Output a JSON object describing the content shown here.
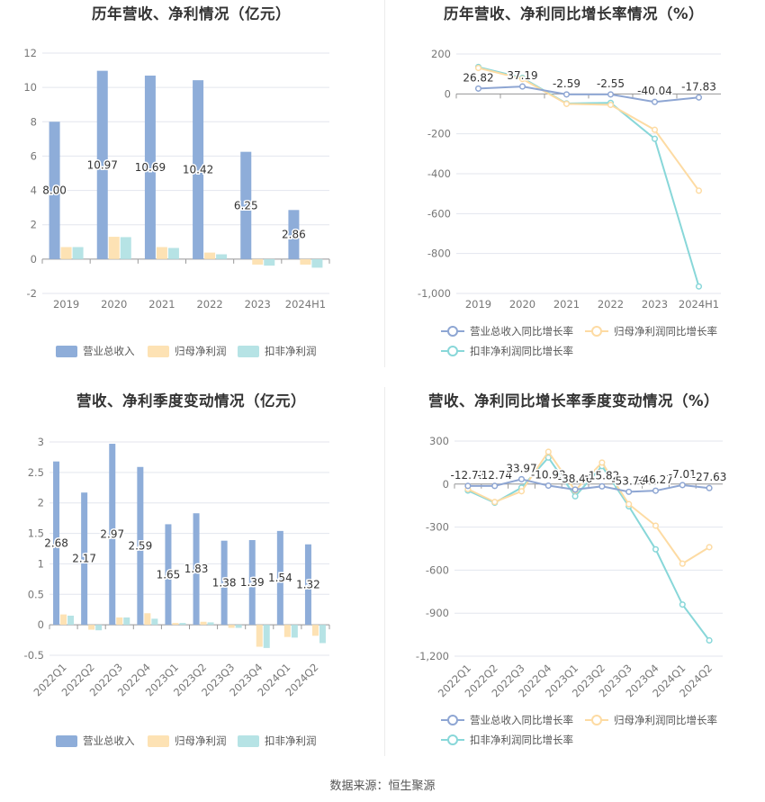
{
  "colors": {
    "revenue": "#8eadd9",
    "net_profit": "#fde2b4",
    "deducted_profit": "#b6e3e5",
    "revenue_line": "#8ea6d3",
    "net_line": "#fddba3",
    "deducted_line": "#88d7d9",
    "grid": "#e3e6ee",
    "axis": "#999999"
  },
  "source_text": "数据来源：恒生聚源",
  "chart_data": [
    {
      "type": "bar",
      "title": "历年营收、净利情况（亿元）",
      "categories": [
        "2019",
        "2020",
        "2021",
        "2022",
        "2023",
        "2024H1"
      ],
      "series": [
        {
          "name": "营业总收入",
          "values": [
            8.0,
            10.97,
            10.69,
            10.42,
            6.25,
            2.86
          ]
        },
        {
          "name": "归母净利润",
          "values": [
            0.7,
            1.3,
            0.7,
            0.38,
            -0.32,
            -0.32
          ]
        },
        {
          "name": "扣非净利润",
          "values": [
            0.7,
            1.28,
            0.65,
            0.28,
            -0.38,
            -0.5
          ]
        }
      ],
      "data_labels": [
        "8.00",
        "10.97",
        "10.69",
        "10.42",
        "6.25",
        "2.86"
      ],
      "yticks": [
        "-2",
        "0",
        "2",
        "4",
        "6",
        "8",
        "10",
        "12"
      ],
      "ylim": [
        -2,
        12
      ],
      "grid": true,
      "legend": "bottom"
    },
    {
      "type": "line",
      "title": "历年营收、净利同比增长率情况（%）",
      "categories": [
        "2019",
        "2020",
        "2021",
        "2022",
        "2023",
        "2024H1"
      ],
      "series": [
        {
          "name": "营业总收入同比增长率",
          "values": [
            26.82,
            37.19,
            -2.59,
            -2.55,
            -40.04,
            -17.83
          ]
        },
        {
          "name": "归母净利润同比增长率",
          "values": [
            130,
            75,
            -50,
            -55,
            -180,
            -485
          ]
        },
        {
          "name": "扣非净利润同比增长率",
          "values": [
            135,
            80,
            -48,
            -45,
            -225,
            -965
          ]
        }
      ],
      "data_labels": [
        "26.82",
        "37.19",
        "-2.59",
        "-2.55",
        "-40.04",
        "-17.83"
      ],
      "yticks": [
        "-1,000",
        "-800",
        "-600",
        "-400",
        "-200",
        "0",
        "200"
      ],
      "ylim": [
        -1000,
        200
      ],
      "grid": true,
      "legend": "bottom"
    },
    {
      "type": "bar",
      "title": "营收、净利季度变动情况（亿元）",
      "categories": [
        "2022Q1",
        "2022Q2",
        "2022Q3",
        "2022Q4",
        "2023Q1",
        "2023Q2",
        "2023Q3",
        "2023Q4",
        "2024Q1",
        "2024Q2"
      ],
      "series": [
        {
          "name": "营业总收入",
          "values": [
            2.68,
            2.17,
            2.97,
            2.59,
            1.65,
            1.83,
            1.38,
            1.39,
            1.54,
            1.32
          ]
        },
        {
          "name": "归母净利润",
          "values": [
            0.17,
            -0.08,
            0.12,
            0.19,
            0.03,
            0.05,
            -0.05,
            -0.36,
            -0.2,
            -0.18
          ]
        },
        {
          "name": "扣非净利润",
          "values": [
            0.15,
            -0.09,
            0.12,
            0.1,
            0.03,
            0.04,
            -0.05,
            -0.38,
            -0.21,
            -0.3
          ]
        }
      ],
      "data_labels": [
        "2.68",
        "2.17",
        "2.97",
        "2.59",
        "1.65",
        "1.83",
        "1.38",
        "1.39",
        "1.54",
        "1.32"
      ],
      "yticks": [
        "-0.5",
        "0",
        "0.5",
        "1",
        "1.5",
        "2",
        "2.5",
        "3"
      ],
      "ylim": [
        -0.5,
        3
      ],
      "grid": true,
      "legend": "bottom"
    },
    {
      "type": "line",
      "title": "营收、净利同比增长率季度变动情况（%）",
      "categories": [
        "2022Q1",
        "2022Q2",
        "2022Q3",
        "2022Q4",
        "2023Q1",
        "2023Q2",
        "2023Q3",
        "2023Q4",
        "2024Q1",
        "2024Q2"
      ],
      "series": [
        {
          "name": "营业总收入同比增长率",
          "values": [
            -12.73,
            -12.74,
            33.97,
            -10.93,
            -38.46,
            -15.82,
            -53.76,
            -46.27,
            -7.01,
            -27.63
          ]
        },
        {
          "name": "归母净利润同比增长率",
          "values": [
            -35,
            -125,
            -50,
            225,
            -45,
            150,
            -140,
            -290,
            -555,
            -440
          ]
        },
        {
          "name": "扣非净利润同比增长率",
          "values": [
            -45,
            -130,
            -25,
            185,
            -85,
            125,
            -155,
            -455,
            -840,
            -1090
          ]
        }
      ],
      "data_labels": [
        "-12.73",
        "-12.74",
        "33.97",
        "-10.93",
        "-38.46",
        "-15.82",
        "-53.76",
        "-46.27",
        "-7.01",
        "-27.63"
      ],
      "yticks": [
        "-1,200",
        "-900",
        "-600",
        "-300",
        "0",
        "300"
      ],
      "ylim": [
        -1200,
        300
      ],
      "grid": true,
      "legend": "bottom"
    }
  ]
}
